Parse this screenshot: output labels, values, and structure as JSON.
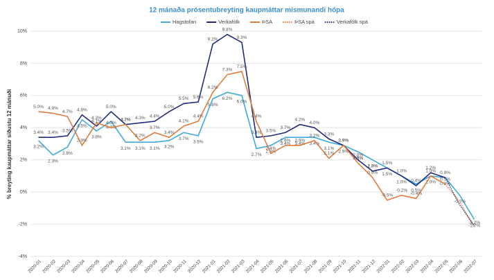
{
  "chart_data": {
    "type": "line",
    "title": "12 mánaða prósentubreyting kaupmáttar mismunandi hópa",
    "y_label": "% breyting kaupmáttar síðustu 12 mánuði",
    "categories": [
      "2020-01",
      "2020-02",
      "2020-03",
      "2020-04",
      "2020-05",
      "2020-06",
      "2020-07",
      "2020-08",
      "2020-09",
      "2020-10",
      "2020-11",
      "2020-12",
      "2021-01",
      "2021-02",
      "2021-03",
      "2021-04",
      "2021-05",
      "2021-06",
      "2021-07",
      "2021-08",
      "2021-09",
      "2021-10",
      "2021-11",
      "2021-12",
      "2022-01",
      "2022-02",
      "2022-03",
      "2022-04",
      "2022-05",
      "2022-06",
      "2022-07"
    ],
    "series": [
      {
        "name": "Hagstofan",
        "color": "#3fa9dc",
        "dashed": false,
        "values": [
          3.2,
          2.3,
          2.8,
          4.5,
          3.8,
          4.4,
          3.1,
          3.1,
          3.1,
          3.2,
          3.7,
          3.5,
          5.8,
          6.2,
          6.0,
          2.7,
          2.9,
          3.4,
          3.4,
          3.4,
          3.1,
          2.9,
          2.5,
          2.0,
          1.5,
          1.0,
          0.5,
          1.0,
          0.9,
          -0.2,
          -1.7
        ],
        "value_labels": [
          "3.2%",
          "2.3%",
          "2.8%",
          "4.5%",
          "3.8%",
          "4.4%",
          "3.1%",
          "3.1%",
          "3.1%",
          "3.2%",
          "3.7%",
          "3.5%",
          "5.8%",
          "6.2%",
          "6.0%",
          "2.7%",
          "2.9%",
          "3.4%",
          "3.4%",
          "3.4%",
          "3.1%",
          "2.9%",
          "2.5%",
          "2.0%",
          "1.5%",
          "1.0%",
          "0.5%",
          "1.0%",
          "0.9%",
          "-0.2%",
          "-1.7%"
        ]
      },
      {
        "name": "Verkafólk",
        "color": "#1f2a7a",
        "dashed": false,
        "values": [
          3.4,
          3.4,
          3.5,
          4.8,
          4.1,
          5.0,
          4.2,
          4.3,
          4.4,
          5.0,
          5.5,
          5.6,
          9.2,
          9.8,
          9.3,
          3.4,
          3.5,
          3.7,
          4.2,
          4.0,
          3.3,
          2.9,
          2.0,
          1.3,
          1.5,
          1.0,
          0.4,
          1.2,
          0.9,
          null,
          null
        ],
        "value_labels": [
          "3.4%",
          "3.4%",
          "3.5%",
          "4.8%",
          "4.1%",
          "5.0%",
          "4.2%",
          "4.3%",
          "4.4%",
          "5.0%",
          "5.5%",
          "5.6%",
          "9.2%",
          "9.8%",
          "9.3%",
          "3.4%",
          "3.5%",
          "3.7%",
          "4.2%",
          "4.0%",
          "3.3%",
          "2.9%",
          "2.0%",
          "1.3%",
          "1.5%",
          "1.0%",
          "0.4%",
          "1.2%",
          "0.9%",
          null,
          null
        ]
      },
      {
        "name": "ÞSA",
        "color": "#e07b39",
        "dashed": false,
        "values": [
          5.0,
          4.9,
          4.7,
          2.9,
          4.3,
          4.0,
          4.2,
          3.2,
          3.7,
          3.4,
          4.1,
          4.4,
          6.2,
          7.3,
          7.5,
          4.4,
          2.4,
          2.9,
          2.9,
          3.2,
          2.1,
          2.9,
          1.8,
          0.9,
          -0.5,
          -0.2,
          -0.4,
          1.0,
          0.5,
          null,
          null
        ],
        "value_labels": [
          "5.0%",
          "4.9%",
          "4.7%",
          "2.9%",
          "4.3%",
          "4.0%",
          "4.2%",
          "3.2%",
          "3.7%",
          "3.4%",
          "4.1%",
          "4.4%",
          "6.2%",
          "7.3%",
          "7.5%",
          "4.4%",
          "2.4%",
          "2.9%",
          "2.9%",
          "3.2%",
          "2.1%",
          "2.9%",
          "1.8%",
          "0.9%",
          "-0.5%",
          "-0.2%",
          "-0.4%",
          "1.0%",
          "0.5%",
          null,
          null
        ]
      },
      {
        "name": "ÞSA spá",
        "color": "#e07b39",
        "dashed": true,
        "values": [
          null,
          null,
          null,
          null,
          null,
          null,
          null,
          null,
          null,
          null,
          null,
          null,
          null,
          null,
          null,
          null,
          null,
          null,
          null,
          null,
          null,
          null,
          null,
          null,
          null,
          null,
          null,
          null,
          0.5,
          -0.6,
          -2.2
        ],
        "value_labels": [
          null,
          null,
          null,
          null,
          null,
          null,
          null,
          null,
          null,
          null,
          null,
          null,
          null,
          null,
          null,
          null,
          null,
          null,
          null,
          null,
          null,
          null,
          null,
          null,
          null,
          null,
          null,
          null,
          null,
          null,
          "-2.2%"
        ]
      },
      {
        "name": "Verkafólk spá",
        "color": "#1f2a7a",
        "dashed": true,
        "values": [
          null,
          null,
          null,
          null,
          null,
          null,
          null,
          null,
          null,
          null,
          null,
          null,
          null,
          null,
          null,
          null,
          null,
          null,
          null,
          null,
          null,
          null,
          null,
          null,
          null,
          null,
          null,
          null,
          0.9,
          -0.8,
          -2.1
        ]
      }
    ],
    "ylim": [
      -4,
      10
    ],
    "yticks": [
      {
        "value": -4,
        "label": "-4%"
      },
      {
        "value": -2,
        "label": "-2%"
      },
      {
        "value": 0,
        "label": "0%"
      },
      {
        "value": 2,
        "label": "2%"
      },
      {
        "value": 4,
        "label": "4%"
      },
      {
        "value": 6,
        "label": "6%"
      },
      {
        "value": 8,
        "label": "8%"
      },
      {
        "value": 10,
        "label": "10%"
      }
    ],
    "grid": true,
    "legend": "top"
  }
}
